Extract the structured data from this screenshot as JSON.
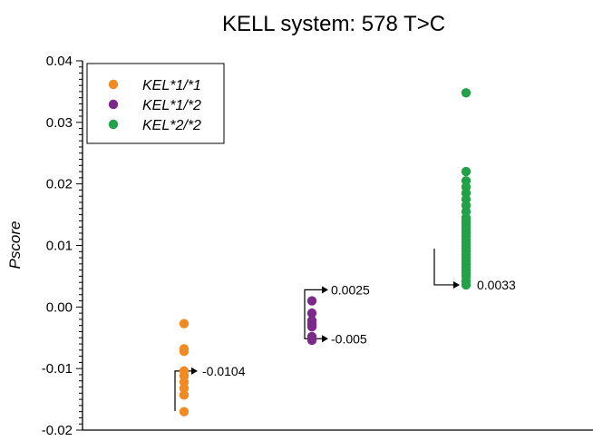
{
  "chart_data": {
    "type": "scatter",
    "title": "KELL system: 578 T>C",
    "xlabel": "",
    "ylabel": "Pscore",
    "ylim": [
      -0.02,
      0.04
    ],
    "yticks": [
      "-0.02",
      "-0.01",
      "0.00",
      "0.01",
      "0.02",
      "0.03",
      "0.04"
    ],
    "grid": false,
    "legend_position": "top-left",
    "series": [
      {
        "name": "KEL*1/*1",
        "color": "#f28a24",
        "x": 1,
        "values": [
          -0.0027,
          -0.0068,
          -0.0072,
          -0.0104,
          -0.0112,
          -0.0122,
          -0.0132,
          -0.0143,
          -0.017
        ]
      },
      {
        "name": "KEL*1/*2",
        "color": "#7b2a8a",
        "x": 2,
        "values": [
          0.001,
          -0.001,
          -0.0022,
          -0.0028,
          -0.0032,
          -0.0048,
          -0.0054
        ]
      },
      {
        "name": "KEL*2/*2",
        "color": "#22a248",
        "x": 3,
        "values": [
          0.0348,
          0.022,
          0.0205,
          0.0195,
          0.0185,
          0.0175,
          0.0165,
          0.0155,
          0.0145,
          0.014,
          0.0135,
          0.013,
          0.0125,
          0.012,
          0.0115,
          0.011,
          0.0105,
          0.01,
          0.0095,
          0.009,
          0.0085,
          0.008,
          0.0075,
          0.007,
          0.0065,
          0.006,
          0.0055,
          0.005,
          0.0042,
          0.0036
        ]
      }
    ],
    "annotations": [
      {
        "label": "-0.0104",
        "series": 0,
        "value": -0.0104
      },
      {
        "label": "0.0025",
        "series": 1,
        "value": 0.0025
      },
      {
        "label": "-0.005",
        "series": 1,
        "value": -0.005
      },
      {
        "label": "0.0033",
        "series": 2,
        "value": 0.0033
      }
    ]
  }
}
